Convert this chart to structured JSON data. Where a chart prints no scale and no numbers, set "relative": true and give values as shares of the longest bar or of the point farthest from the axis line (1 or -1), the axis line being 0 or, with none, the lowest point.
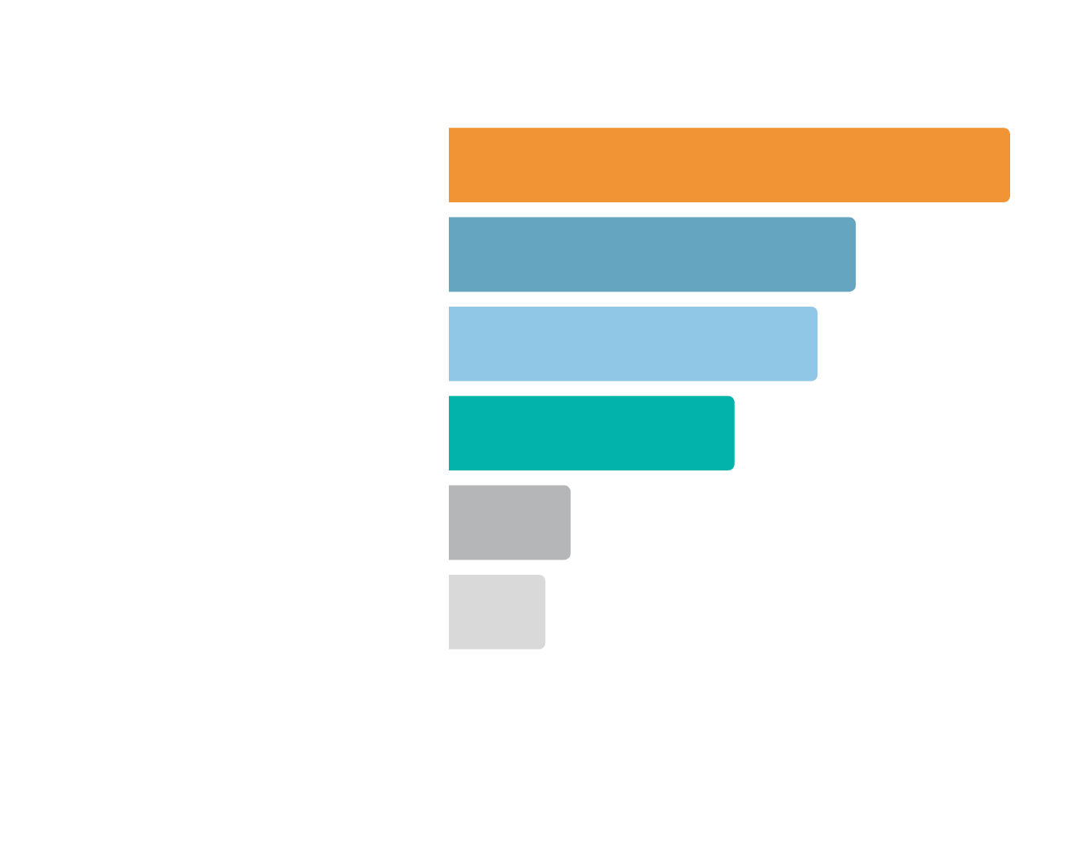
{
  "chart_data": {
    "type": "bar",
    "orientation": "horizontal",
    "relative": true,
    "categories": [
      null,
      null,
      null,
      null,
      null,
      null
    ],
    "values": [
      1,
      0.725,
      0.657,
      0.509,
      0.217,
      0.172
    ],
    "colors": [
      "#f09435",
      "#66a5bf",
      "#90c7e6",
      "#02b3ab",
      "#b5b6b8",
      "#d9d9d9"
    ]
  }
}
